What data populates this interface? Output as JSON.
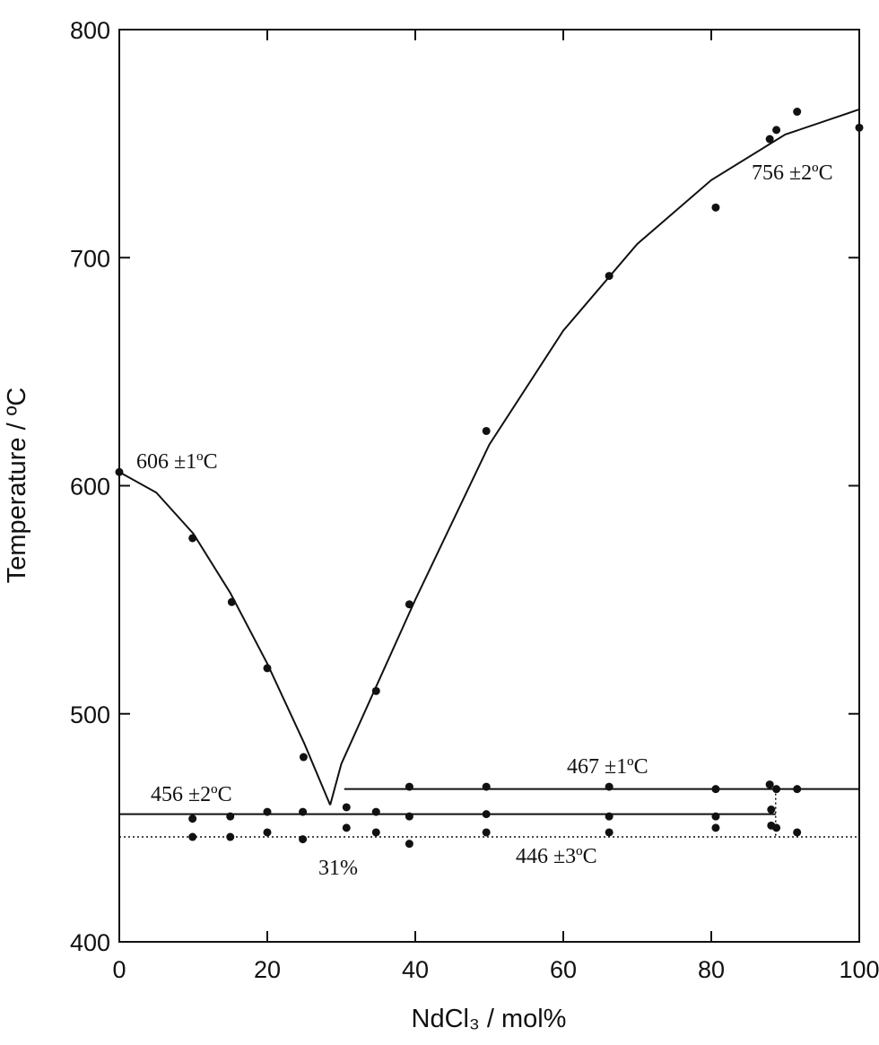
{
  "chart_data": {
    "type": "scatter",
    "x_label": "NdCl₃ / mol%",
    "y_label": "Temperature / ºC",
    "xlim": [
      0,
      100
    ],
    "ylim": [
      400,
      800
    ],
    "xticks": [
      0,
      20,
      40,
      60,
      80,
      100
    ],
    "yticks": [
      400,
      500,
      600,
      700,
      800
    ],
    "color": "#111111",
    "series": [
      {
        "x": [
          0,
          9.9,
          15.2,
          20,
          24.9,
          34.7,
          39.2,
          49.6,
          66.2,
          80.6,
          87.9,
          88.8,
          91.6,
          100,
          9.9,
          15,
          20,
          24.8,
          30.7,
          34.7,
          39.2,
          49.6,
          66.2,
          80.6,
          88.1,
          9.9,
          15,
          20,
          24.8,
          30.7,
          34.7,
          39.2,
          49.6,
          66.2,
          80.6,
          88.1,
          88.8,
          91.6,
          39.2,
          49.6,
          66.2,
          80.6,
          87.9,
          88.8,
          91.6
        ],
        "values": [
          606,
          577,
          549,
          520,
          481,
          510,
          548,
          624,
          692,
          722,
          752,
          756,
          764,
          757,
          454,
          455,
          457,
          457,
          459,
          457,
          455,
          456,
          455,
          455,
          458,
          446,
          446,
          448,
          445,
          450,
          448,
          443,
          448,
          448,
          450,
          451,
          450,
          448,
          468,
          468,
          468,
          467,
          469,
          467,
          467
        ]
      }
    ],
    "lines": [
      {
        "x": [
          0,
          5,
          10,
          15,
          20,
          25,
          28.5
        ],
        "values": [
          606,
          597,
          579,
          553,
          522,
          487,
          460
        ],
        "style": "solid"
      },
      {
        "x": [
          28.5,
          30,
          35,
          40,
          50,
          60,
          70,
          80,
          90,
          100
        ],
        "values": [
          460,
          478,
          514,
          550,
          618,
          668,
          706,
          734,
          754,
          765
        ],
        "style": "solid"
      },
      {
        "x": [
          0,
          88.7
        ],
        "values": [
          456,
          456
        ],
        "style": "solid"
      },
      {
        "x": [
          30.4,
          100
        ],
        "values": [
          467,
          467
        ],
        "style": "solid"
      },
      {
        "x": [
          0,
          100
        ],
        "values": [
          446,
          446
        ],
        "style": "dotted"
      },
      {
        "x": [
          88.7,
          88.7
        ],
        "values": [
          467,
          446
        ],
        "style": "dotted"
      }
    ],
    "annotations": [
      "606 ±1ºC",
      "756 ±2ºC",
      "456 ±2ºC",
      "467 ±1ºC",
      "446 ±3ºC",
      "31%"
    ]
  }
}
